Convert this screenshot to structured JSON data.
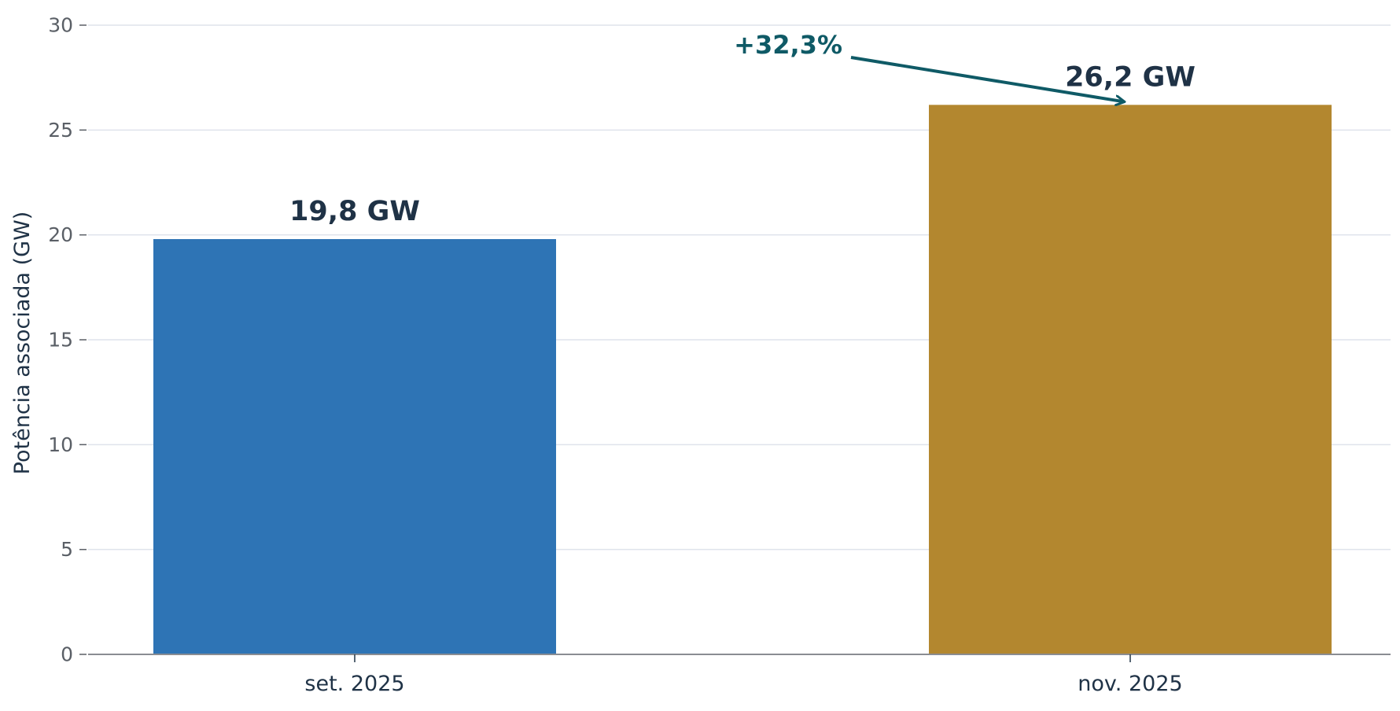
{
  "chart_data": {
    "type": "bar",
    "title": "",
    "xlabel": "",
    "ylabel": "Potência associada (GW)",
    "ylim": [
      0,
      30
    ],
    "yticks": [
      0,
      5,
      10,
      15,
      20,
      25,
      30
    ],
    "categories": [
      "set. 2025",
      "nov. 2025"
    ],
    "values": [
      19.8,
      26.2
    ],
    "data_labels": [
      "19,8 GW",
      "26,2 GW"
    ],
    "bar_colors": [
      "#2e74b5",
      "#b3872f"
    ],
    "grid": true,
    "legend": "none",
    "annotation": {
      "text": "+32,3%",
      "color": "#0f5a66",
      "points_to_value": 26.2
    }
  },
  "colors": {
    "text_dark": "#1f3246",
    "tick_text": "#5a5f66",
    "grid": "#dfe3ec",
    "axis": "#8a8d92",
    "annotation": "#0f5a66"
  }
}
